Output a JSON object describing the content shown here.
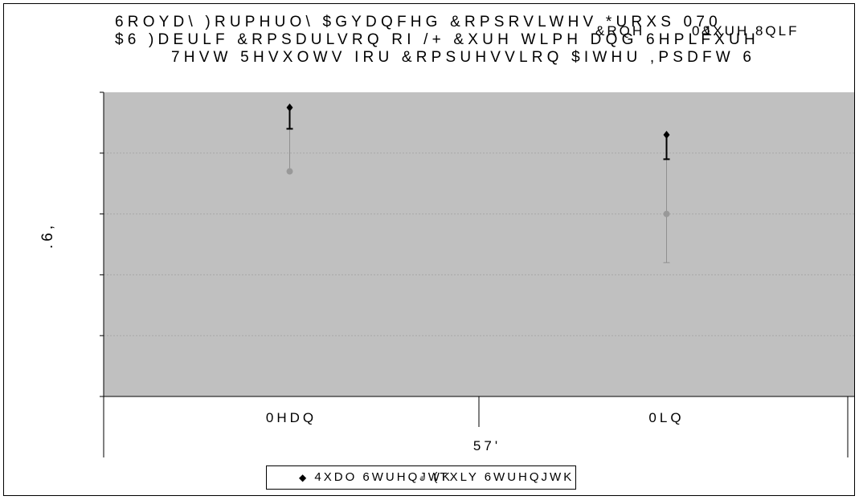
{
  "title_lines": [
    "6ROYD\\ )RUPHUO\\ $GYDQFHG &RPSRVLWHV *URXS 070",
    "$6 )DEULF &RPSDULVRQ RI /+ &XUH WLPH DQG 6HPLFXUH",
    "7HVW 5HVXOWV IRU &RPSUHVVLRQ $IWHU ,PSDFW 6"
  ],
  "title_overlay": [
    "&RQH",
    "0\u000b1",
    "&XUH 8QLF"
  ],
  "colors": {
    "plot_background": "#c0c0c0",
    "series_1": "#000000",
    "series_2": "#999999"
  },
  "chart_data": {
    "type": "scatter",
    "categories": [
      "0HDQ",
      "0LQ"
    ],
    "xlabel": "57'",
    "ylabel": ".6,",
    "ylim": [
      0,
      5
    ],
    "grid": true,
    "legend_position": "bottom",
    "series": [
      {
        "name": "4XDO 6WUHQJWK",
        "marker": "diamond",
        "values": [
          4.75,
          4.3
        ],
        "error_bars_lower": [
          4.4,
          3.9
        ]
      },
      {
        "name": "(TXLY 6WUHQJWK",
        "marker": "circle",
        "values": [
          3.7,
          3.0
        ],
        "error_bars_lower": [
          null,
          2.2
        ],
        "error_bars_upper": [
          4.4,
          3.9
        ]
      }
    ]
  }
}
